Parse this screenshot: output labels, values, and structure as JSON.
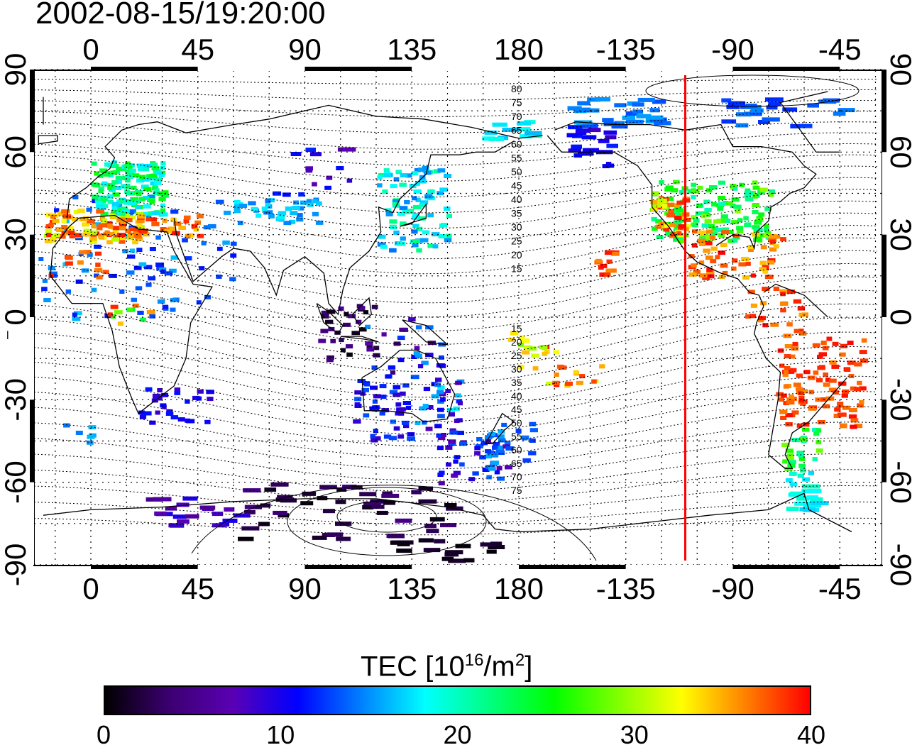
{
  "title": "2002-08-15/19:20:00",
  "map": {
    "lon_ticks": [
      "0",
      "45",
      "90",
      "135",
      "180",
      "-135",
      "-90",
      "-45"
    ],
    "lat_ticks": [
      "90",
      "60",
      "30",
      "0",
      "-30",
      "-60",
      "-90"
    ],
    "contour_labels_north": [
      "80",
      "75",
      "70",
      "65",
      "60",
      "55",
      "50",
      "45",
      "40",
      "35",
      "30",
      "25",
      "20",
      "15"
    ],
    "contour_labels_south": [
      "15",
      "20",
      "25",
      "30",
      "35",
      "40",
      "45",
      "50",
      "55",
      "60",
      "65",
      "70",
      "75"
    ],
    "terminator_longitude": -110,
    "terminator_color": "#ff0000",
    "grid": "dotted"
  },
  "colorbar": {
    "label_prefix": "TEC  [10",
    "label_exp1": "16",
    "label_mid": "/m",
    "label_exp2": "2",
    "label_suffix": "]",
    "min": 0,
    "max": 40,
    "ticks": [
      "0",
      "10",
      "20",
      "30",
      "40"
    ],
    "colors": [
      "#000000",
      "#3b0070",
      "#5a00b4",
      "#0000ff",
      "#0080ff",
      "#00ffff",
      "#00ff80",
      "#00ff00",
      "#80ff00",
      "#ffff00",
      "#ff8000",
      "#ff0000"
    ]
  }
}
